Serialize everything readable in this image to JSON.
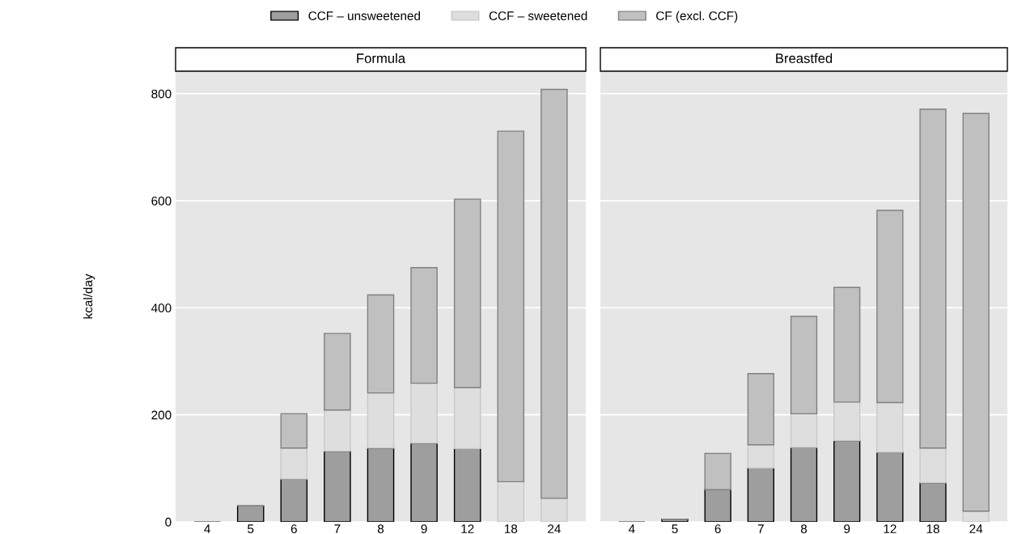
{
  "chart_data": [
    {
      "type": "bar",
      "title": "Formula",
      "ylabel": "kcal/day",
      "stacked": true,
      "legend": "top",
      "grid": "y",
      "categories": [
        "4",
        "5",
        "6",
        "7",
        "8",
        "9",
        "12",
        "18",
        "24"
      ],
      "ylim": [
        0,
        842
      ],
      "yticks": [
        0,
        200,
        400,
        600,
        800
      ],
      "series": [
        {
          "name": "CCF – unsweetened",
          "color": "#9e9e9e",
          "values": [
            0,
            30,
            80,
            132,
            138,
            147,
            137,
            0,
            0
          ]
        },
        {
          "name": "CCF – sweetened",
          "color": "#dedede",
          "values": [
            0,
            0,
            58,
            77,
            103,
            112,
            114,
            75,
            44
          ]
        },
        {
          "name": "CF (excl. CCF)",
          "color": "#c0c0c0",
          "values": [
            0,
            0,
            64,
            143,
            183,
            216,
            352,
            655,
            764
          ]
        }
      ]
    },
    {
      "type": "bar",
      "title": "Breastfed",
      "stacked": true,
      "grid": "y",
      "tick_labels": "x",
      "categories": [
        "4",
        "5",
        "6",
        "7",
        "8",
        "9",
        "12",
        "18",
        "24"
      ],
      "ylim": [
        0,
        842
      ],
      "yticks": [
        0,
        200,
        400,
        600,
        800
      ],
      "series": [
        {
          "color": "#9e9e9e",
          "values": [
            0,
            5,
            60,
            101,
            139,
            152,
            130,
            73,
            0
          ]
        },
        {
          "color": "#dedede",
          "values": [
            0,
            0,
            0,
            43,
            63,
            72,
            93,
            65,
            20
          ]
        },
        {
          "color": "#c0c0c0",
          "values": [
            0,
            0,
            68,
            133,
            182,
            214,
            359,
            633,
            743
          ]
        }
      ]
    }
  ]
}
